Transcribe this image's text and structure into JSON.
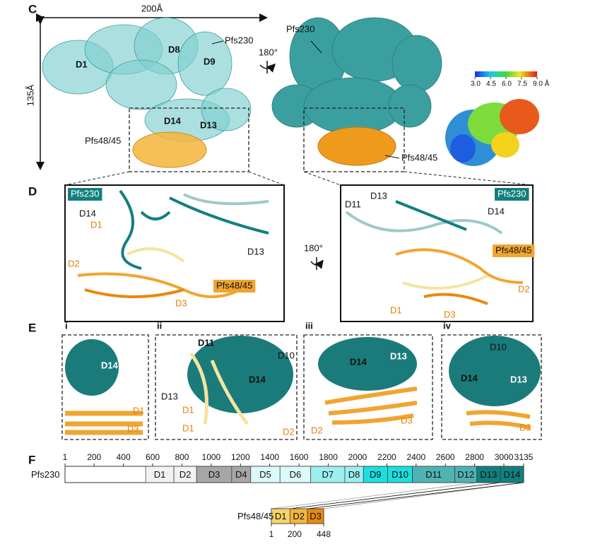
{
  "panel_C": {
    "letter": "C",
    "width_label": "200Å",
    "height_label": "135Å",
    "left_labels": [
      "D1",
      "D8",
      "D9",
      "Pfs230",
      "D14",
      "D13",
      "Pfs48/45"
    ],
    "rotation": "180°",
    "right_labels": [
      "Pfs230",
      "Pfs48/45"
    ],
    "colorbar": {
      "lim": [
        3,
        9
      ],
      "ticks": [
        {
          "value": 3,
          "label": "3.0"
        },
        {
          "value": 4.5,
          "label": "4.5"
        },
        {
          "value": 6,
          "label": "6.0"
        },
        {
          "value": 7.5,
          "label": "7.5"
        },
        {
          "value": 9,
          "label": "9.0 Å"
        }
      ]
    }
  },
  "panel_D": {
    "letter": "D",
    "left": {
      "box_labels": [
        "Pfs230",
        "Pfs48/45"
      ],
      "labels": [
        "D14",
        "D1",
        "D13",
        "D2",
        "D3"
      ]
    },
    "rotation": "180°",
    "right": {
      "box_labels": [
        "Pfs230",
        "Pfs48/45"
      ],
      "labels": [
        "D13",
        "D11",
        "D14",
        "D2",
        "D1",
        "D3"
      ]
    }
  },
  "panel_E": {
    "letter": "E",
    "subpanels": [
      {
        "label": "i",
        "domains": [
          "D14",
          "D1",
          "D3"
        ]
      },
      {
        "label": "ii",
        "domains": [
          "D11",
          "D10",
          "D14",
          "D13",
          "D1",
          "D1",
          "D2"
        ]
      },
      {
        "label": "iii",
        "domains": [
          "D14",
          "D13",
          "D2",
          "D3"
        ]
      },
      {
        "label": "iv",
        "domains": [
          "D10",
          "D14",
          "D13",
          "D3"
        ]
      }
    ]
  },
  "panel_F": {
    "letter": "F",
    "pfs230": {
      "name": "Pfs230",
      "xlim": [
        1,
        3135
      ],
      "ticks": [
        1,
        200,
        400,
        600,
        800,
        1000,
        1200,
        1400,
        1600,
        1800,
        2000,
        2200,
        2400,
        2600,
        2800,
        3000,
        3135
      ],
      "domains": [
        {
          "label": "D1",
          "start": 552,
          "end": 745,
          "color": "#f2f2f2"
        },
        {
          "label": "D2",
          "start": 745,
          "end": 900,
          "color": "#f2f2f2"
        },
        {
          "label": "D3",
          "start": 900,
          "end": 1140,
          "color": "#a6a6a6"
        },
        {
          "label": "D4",
          "start": 1140,
          "end": 1270,
          "color": "#a6a6a6"
        },
        {
          "label": "D5",
          "start": 1270,
          "end": 1470,
          "color": "#dcfafa"
        },
        {
          "label": "D6",
          "start": 1470,
          "end": 1680,
          "color": "#dcfafa"
        },
        {
          "label": "D7",
          "start": 1680,
          "end": 1913,
          "color": "#9cefef"
        },
        {
          "label": "D8",
          "start": 1913,
          "end": 2040,
          "color": "#9cefef"
        },
        {
          "label": "D9",
          "start": 2040,
          "end": 2205,
          "color": "#1ddede"
        },
        {
          "label": "D10",
          "start": 2205,
          "end": 2375,
          "color": "#1ddede"
        },
        {
          "label": "D11",
          "start": 2375,
          "end": 2665,
          "color": "#4fb3b3"
        },
        {
          "label": "D12",
          "start": 2665,
          "end": 2815,
          "color": "#4fb3b3"
        },
        {
          "label": "D13",
          "start": 2815,
          "end": 2975,
          "color": "#137f7f"
        },
        {
          "label": "D14",
          "start": 2975,
          "end": 3135,
          "color": "#137f7f"
        }
      ]
    },
    "pfs48_45": {
      "name": "Pfs48/45",
      "xlim": [
        1,
        448
      ],
      "ticks": [
        1,
        200,
        448
      ],
      "domains": [
        {
          "label": "D1",
          "start": 1,
          "end": 160,
          "color": "#f5d46b"
        },
        {
          "label": "D2",
          "start": 160,
          "end": 310,
          "color": "#f1b63a"
        },
        {
          "label": "D3",
          "start": 310,
          "end": 448,
          "color": "#e8890f"
        }
      ]
    }
  }
}
